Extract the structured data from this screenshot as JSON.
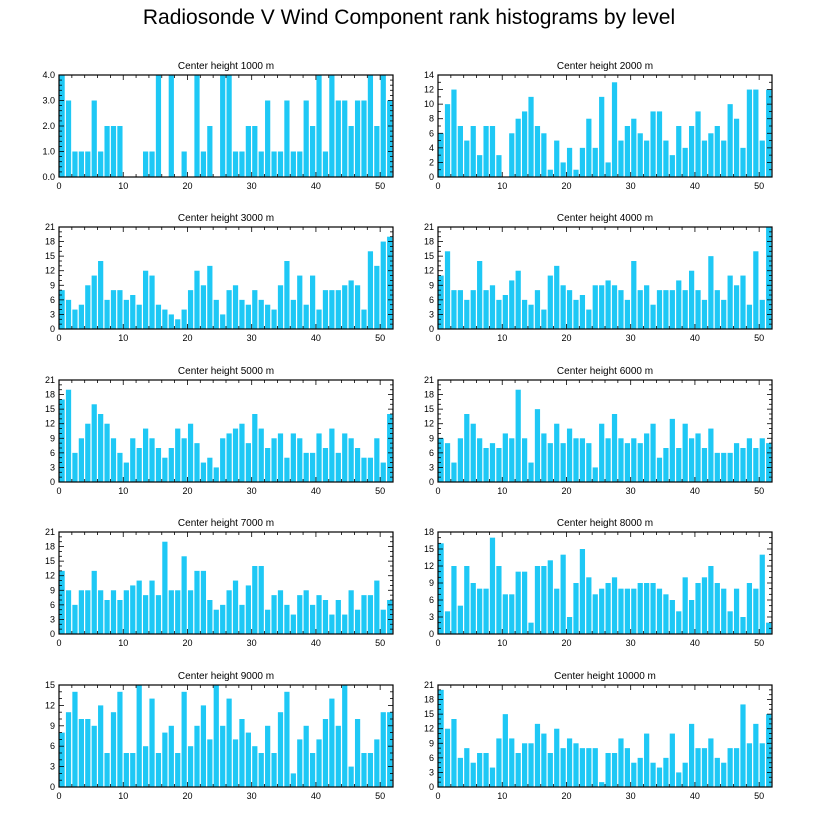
{
  "title": "Radiosonde V Wind Component rank histograms by level",
  "colors": {
    "bar": "#1ec8f5",
    "axis": "#000000",
    "background": "#ffffff"
  },
  "chart_data": [
    {
      "type": "bar",
      "title": "Center height 1000 m",
      "xlim": [
        0,
        52
      ],
      "ylim": [
        0,
        4.0
      ],
      "x_ticks": [
        0,
        10,
        20,
        30,
        40,
        50
      ],
      "y_ticks": [
        0.0,
        1.0,
        2.0,
        3.0,
        4.0
      ],
      "y_tick_labels": [
        "0.0",
        "1.0",
        "2.0",
        "3.0",
        "4.0"
      ],
      "values": [
        4,
        3,
        1,
        1,
        1,
        3,
        1,
        2,
        2,
        2,
        0,
        0,
        0,
        1,
        1,
        4,
        0,
        4,
        0,
        1,
        0,
        4,
        1,
        2,
        0,
        4,
        4,
        1,
        1,
        2,
        2,
        1,
        3,
        1,
        1,
        3,
        1,
        1,
        3,
        2,
        4,
        1,
        4,
        3,
        3,
        2,
        3,
        3,
        4,
        2,
        4,
        3
      ]
    },
    {
      "type": "bar",
      "title": "Center height 2000 m",
      "xlim": [
        0,
        52
      ],
      "ylim": [
        0,
        14
      ],
      "x_ticks": [
        0,
        10,
        20,
        30,
        40,
        50
      ],
      "y_ticks": [
        0,
        2,
        4,
        6,
        8,
        10,
        12,
        14
      ],
      "y_tick_labels": [
        "0",
        "2",
        "4",
        "6",
        "8",
        "10",
        "12",
        "14"
      ],
      "values": [
        6,
        10,
        12,
        7,
        5,
        7,
        3,
        7,
        7,
        3,
        0,
        6,
        8,
        9,
        11,
        7,
        6,
        1,
        5,
        2,
        4,
        1,
        4,
        8,
        4,
        11,
        2,
        13,
        5,
        7,
        8,
        6,
        5,
        9,
        9,
        5,
        3,
        7,
        4,
        7,
        9,
        5,
        6,
        7,
        5,
        10,
        8,
        4,
        12,
        12,
        5,
        12
      ]
    },
    {
      "type": "bar",
      "title": "Center height 3000 m",
      "xlim": [
        0,
        52
      ],
      "ylim": [
        0,
        21
      ],
      "x_ticks": [
        0,
        10,
        20,
        30,
        40,
        50
      ],
      "y_ticks": [
        0,
        3,
        6,
        9,
        12,
        15,
        18,
        21
      ],
      "y_tick_labels": [
        "0",
        "3",
        "6",
        "9",
        "12",
        "15",
        "18",
        "21"
      ],
      "values": [
        8,
        6,
        4,
        5,
        9,
        11,
        14,
        6,
        8,
        8,
        6,
        7,
        5,
        12,
        11,
        5,
        4,
        3,
        2,
        4,
        8,
        12,
        9,
        13,
        6,
        3,
        8,
        9,
        6,
        5,
        8,
        6,
        5,
        4,
        9,
        14,
        6,
        11,
        5,
        11,
        4,
        8,
        8,
        8,
        9,
        10,
        9,
        4,
        16,
        13,
        18,
        19
      ]
    },
    {
      "type": "bar",
      "title": "Center height 4000 m",
      "xlim": [
        0,
        52
      ],
      "ylim": [
        0,
        21
      ],
      "x_ticks": [
        0,
        10,
        20,
        30,
        40,
        50
      ],
      "y_ticks": [
        0,
        3,
        6,
        9,
        12,
        15,
        18,
        21
      ],
      "y_tick_labels": [
        "0",
        "3",
        "6",
        "9",
        "12",
        "15",
        "18",
        "21"
      ],
      "values": [
        11,
        16,
        8,
        8,
        6,
        8,
        14,
        8,
        9,
        6,
        7,
        10,
        12,
        6,
        5,
        8,
        4,
        11,
        13,
        9,
        8,
        6,
        7,
        4,
        9,
        9,
        10,
        9,
        8,
        6,
        14,
        8,
        9,
        5,
        8,
        8,
        8,
        10,
        8,
        12,
        8,
        6,
        15,
        8,
        6,
        11,
        9,
        11,
        5,
        16,
        6,
        21
      ]
    },
    {
      "type": "bar",
      "title": "Center height 5000 m",
      "xlim": [
        0,
        52
      ],
      "ylim": [
        0,
        21
      ],
      "x_ticks": [
        0,
        10,
        20,
        30,
        40,
        50
      ],
      "y_ticks": [
        0,
        3,
        6,
        9,
        12,
        15,
        18,
        21
      ],
      "y_tick_labels": [
        "0",
        "3",
        "6",
        "9",
        "12",
        "15",
        "18",
        "21"
      ],
      "values": [
        17,
        19,
        6,
        9,
        12,
        16,
        14,
        12,
        9,
        6,
        4,
        9,
        7,
        11,
        9,
        7,
        5,
        7,
        11,
        9,
        12,
        8,
        4,
        5,
        3,
        9,
        10,
        11,
        12,
        8,
        14,
        11,
        7,
        9,
        10,
        5,
        10,
        9,
        6,
        6,
        10,
        7,
        11,
        6,
        10,
        9,
        7,
        5,
        5,
        9,
        4,
        14
      ]
    },
    {
      "type": "bar",
      "title": "Center height 6000 m",
      "xlim": [
        0,
        52
      ],
      "ylim": [
        0,
        21
      ],
      "x_ticks": [
        0,
        10,
        20,
        30,
        40,
        50
      ],
      "y_ticks": [
        0,
        3,
        6,
        9,
        12,
        15,
        18,
        21
      ],
      "y_tick_labels": [
        "0",
        "3",
        "6",
        "9",
        "12",
        "15",
        "18",
        "21"
      ],
      "values": [
        9,
        8,
        4,
        9,
        14,
        12,
        9,
        7,
        8,
        7,
        10,
        9,
        19,
        9,
        4,
        15,
        10,
        8,
        12,
        8,
        11,
        9,
        9,
        8,
        3,
        12,
        9,
        14,
        9,
        8,
        9,
        8,
        10,
        12,
        5,
        7,
        13,
        7,
        12,
        9,
        10,
        7,
        11,
        6,
        6,
        6,
        8,
        7,
        9,
        7,
        9,
        8
      ]
    },
    {
      "type": "bar",
      "title": "Center height 7000 m",
      "xlim": [
        0,
        52
      ],
      "ylim": [
        0,
        21
      ],
      "x_ticks": [
        0,
        10,
        20,
        30,
        40,
        50
      ],
      "y_ticks": [
        0,
        3,
        6,
        9,
        12,
        15,
        18,
        21
      ],
      "y_tick_labels": [
        "0",
        "3",
        "6",
        "9",
        "12",
        "15",
        "18",
        "21"
      ],
      "values": [
        13,
        9,
        6,
        9,
        9,
        13,
        9,
        7,
        9,
        7,
        9,
        10,
        11,
        8,
        11,
        8,
        19,
        9,
        9,
        16,
        9,
        13,
        13,
        7,
        5,
        6,
        9,
        11,
        6,
        10,
        14,
        14,
        5,
        8,
        9,
        6,
        4,
        8,
        9,
        6,
        8,
        7,
        4,
        7,
        4,
        9,
        5,
        8,
        8,
        11,
        5,
        7
      ]
    },
    {
      "type": "bar",
      "title": "Center height 8000 m",
      "xlim": [
        0,
        52
      ],
      "ylim": [
        0,
        18
      ],
      "x_ticks": [
        0,
        10,
        20,
        30,
        40,
        50
      ],
      "y_ticks": [
        0,
        3,
        6,
        9,
        12,
        15,
        18
      ],
      "y_tick_labels": [
        "0",
        "3",
        "6",
        "9",
        "12",
        "15",
        "18"
      ],
      "values": [
        16,
        4,
        12,
        5,
        12,
        9,
        8,
        8,
        17,
        12,
        7,
        7,
        11,
        11,
        2,
        12,
        12,
        13,
        8,
        14,
        3,
        9,
        15,
        10,
        7,
        8,
        9,
        10,
        8,
        8,
        8,
        9,
        9,
        9,
        8,
        7,
        6,
        4,
        10,
        6,
        9,
        10,
        12,
        9,
        8,
        4,
        8,
        3,
        9,
        8,
        14,
        2
      ]
    },
    {
      "type": "bar",
      "title": "Center height 9000 m",
      "xlim": [
        0,
        52
      ],
      "ylim": [
        0,
        15
      ],
      "x_ticks": [
        0,
        10,
        20,
        30,
        40,
        50
      ],
      "y_ticks": [
        0,
        3,
        6,
        9,
        12,
        15
      ],
      "y_tick_labels": [
        "0",
        "3",
        "6",
        "9",
        "12",
        "15"
      ],
      "values": [
        8,
        11,
        14,
        10,
        10,
        9,
        12,
        5,
        11,
        14,
        5,
        5,
        15,
        6,
        13,
        5,
        8,
        9,
        5,
        14,
        6,
        9,
        12,
        7,
        15,
        9,
        13,
        7,
        10,
        8,
        6,
        5,
        9,
        5,
        11,
        14,
        2,
        7,
        9,
        5,
        7,
        10,
        13,
        9,
        15,
        3,
        10,
        5,
        5,
        7,
        11,
        11
      ]
    },
    {
      "type": "bar",
      "title": "Center height 10000 m",
      "xlim": [
        0,
        52
      ],
      "ylim": [
        0,
        21
      ],
      "x_ticks": [
        0,
        10,
        20,
        30,
        40,
        50
      ],
      "y_ticks": [
        0,
        3,
        6,
        9,
        12,
        15,
        18,
        21
      ],
      "y_tick_labels": [
        "0",
        "3",
        "6",
        "9",
        "12",
        "15",
        "18",
        "21"
      ],
      "values": [
        20,
        12,
        14,
        6,
        8,
        5,
        7,
        7,
        4,
        10,
        15,
        10,
        7,
        9,
        9,
        13,
        11,
        7,
        12,
        8,
        10,
        9,
        8,
        8,
        8,
        1,
        7,
        7,
        10,
        8,
        5,
        6,
        11,
        5,
        4,
        6,
        11,
        3,
        5,
        13,
        8,
        8,
        10,
        6,
        5,
        8,
        8,
        17,
        9,
        13,
        9,
        15
      ]
    }
  ]
}
